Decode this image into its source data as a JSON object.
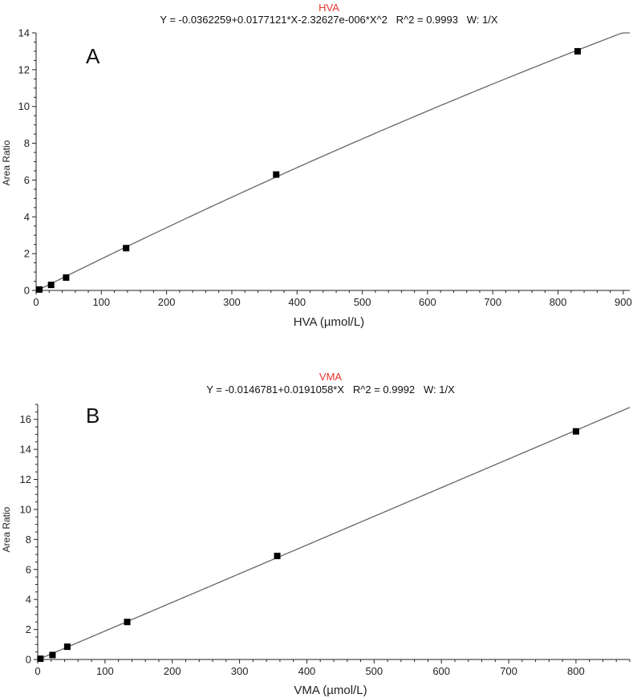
{
  "chart_data": [
    {
      "type": "scatter",
      "panel_label": "A",
      "title": "HVA",
      "equation": "Y = -0.0362259+0.0177121*X-2.32627e-006*X^2   R^2 = 0.9993   W: 1/X",
      "xlabel": "HVA (µmol/L)",
      "ylabel": "Area Ratio",
      "xlim": [
        0,
        910
      ],
      "ylim": [
        0,
        14
      ],
      "xticks": [
        "0",
        "100",
        "200",
        "300",
        "400",
        "500",
        "600",
        "700",
        "800",
        "900"
      ],
      "yticks": [
        "0",
        "2",
        "4",
        "6",
        "8",
        "10",
        "12",
        "14"
      ],
      "fit": {
        "kind": "quadratic",
        "coefficients": [
          -0.0362259,
          0.0177121,
          -2.32627e-06
        ],
        "x_range": [
          0,
          910
        ]
      },
      "series": [
        {
          "x": [
            5,
            23,
            46,
            138,
            368,
            830
          ],
          "y": [
            0.05,
            0.3,
            0.7,
            2.3,
            6.3,
            13.0
          ]
        }
      ],
      "grid": false,
      "colors": {
        "title": "#e8352e",
        "fit": "#666666",
        "points": "#000000"
      }
    },
    {
      "type": "scatter",
      "panel_label": "B",
      "title": "VMA",
      "equation": "Y = -0.0146781+0.0191058*X   R^2 = 0.9992   W: 1/X",
      "xlabel": "VMA (µmol/L)",
      "ylabel": "Area Ratio",
      "xlim": [
        0,
        880
      ],
      "ylim": [
        0,
        17
      ],
      "xticks": [
        "0",
        "100",
        "200",
        "300",
        "400",
        "500",
        "600",
        "700",
        "800"
      ],
      "yticks": [
        "0",
        "2",
        "4",
        "6",
        "8",
        "10",
        "12",
        "14",
        "16"
      ],
      "fit": {
        "kind": "linear",
        "coefficients": [
          -0.0146781,
          0.0191058
        ],
        "x_range": [
          0,
          880
        ]
      },
      "series": [
        {
          "x": [
            4,
            22,
            44,
            133,
            356,
            800
          ],
          "y": [
            0.05,
            0.3,
            0.85,
            2.5,
            6.9,
            15.2
          ]
        }
      ],
      "grid": false,
      "colors": {
        "title": "#e8352e",
        "fit": "#666666",
        "points": "#000000"
      }
    }
  ]
}
